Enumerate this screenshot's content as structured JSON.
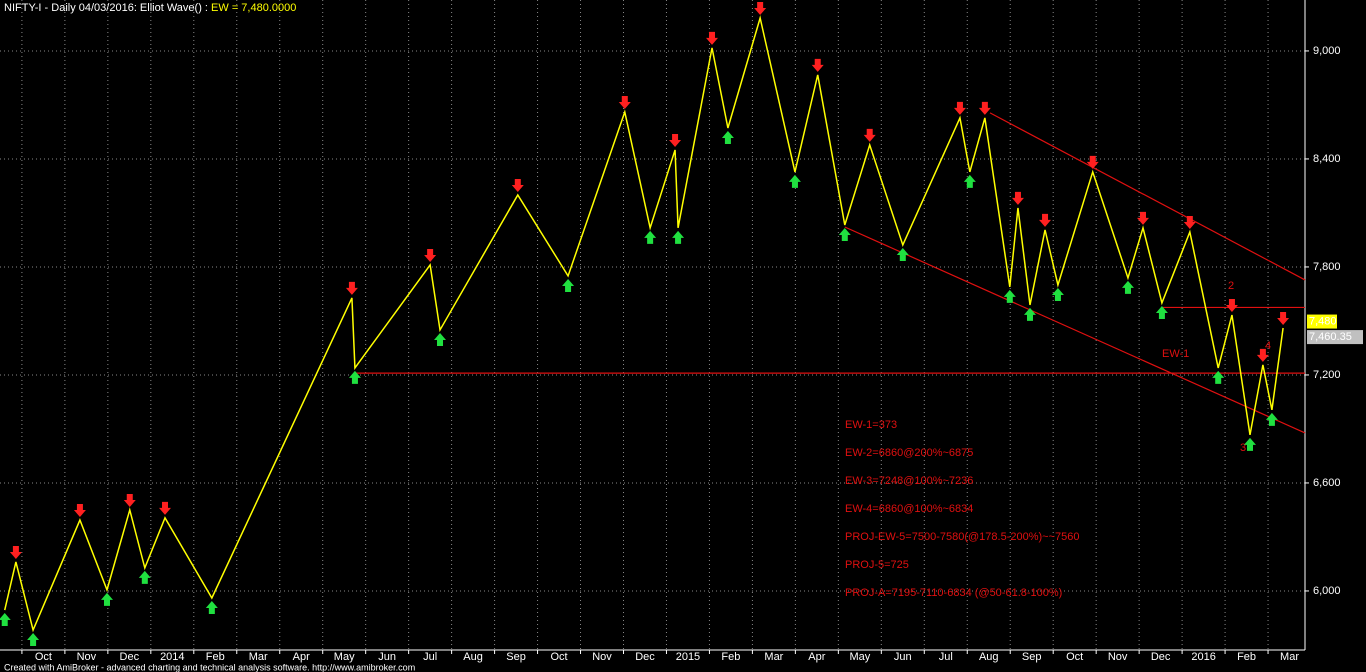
{
  "chart_data": {
    "type": "line",
    "title": "NIFTY-I - Daily 04/03/2016: Elliot Wave() : ",
    "title_value": "EW = 7,480.0000",
    "footer": "Created with AmiBroker - advanced charting and technical analysis software. http://www.amibroker.com",
    "xlim": [
      0.49,
      30.86
    ],
    "ylim": [
      5672,
      9283
    ],
    "yticks": [
      {
        "value": 6000,
        "label": "6,000"
      },
      {
        "value": 6600,
        "label": "6,600"
      },
      {
        "value": 7200,
        "label": "7,200"
      },
      {
        "value": 7800,
        "label": "7,800"
      },
      {
        "value": 8400,
        "label": "8,400"
      },
      {
        "value": 9000,
        "label": "9,000"
      }
    ],
    "xticks": [
      {
        "value": 1,
        "label": "Oct"
      },
      {
        "value": 2,
        "label": "Nov"
      },
      {
        "value": 3,
        "label": "Dec"
      },
      {
        "value": 4,
        "label": "2014"
      },
      {
        "value": 5,
        "label": "Feb"
      },
      {
        "value": 6,
        "label": "Mar"
      },
      {
        "value": 7,
        "label": "Apr"
      },
      {
        "value": 8,
        "label": "May"
      },
      {
        "value": 9,
        "label": "Jun"
      },
      {
        "value": 10,
        "label": "Jul"
      },
      {
        "value": 11,
        "label": "Aug"
      },
      {
        "value": 12,
        "label": "Sep"
      },
      {
        "value": 13,
        "label": "Oct"
      },
      {
        "value": 14,
        "label": "Nov"
      },
      {
        "value": 15,
        "label": "Dec"
      },
      {
        "value": 16,
        "label": "2015"
      },
      {
        "value": 17,
        "label": "Feb"
      },
      {
        "value": 18,
        "label": "Mar"
      },
      {
        "value": 19,
        "label": "Apr"
      },
      {
        "value": 20,
        "label": "May"
      },
      {
        "value": 21,
        "label": "Jun"
      },
      {
        "value": 22,
        "label": "Jul"
      },
      {
        "value": 23,
        "label": "Aug"
      },
      {
        "value": 24,
        "label": "Sep"
      },
      {
        "value": 25,
        "label": "Oct"
      },
      {
        "value": 26,
        "label": "Nov"
      },
      {
        "value": 27,
        "label": "Dec"
      },
      {
        "value": 28,
        "label": "2016"
      },
      {
        "value": 29,
        "label": "Feb"
      },
      {
        "value": 30,
        "label": "Mar"
      }
    ],
    "grid": true,
    "series": [
      {
        "name": "EW",
        "color": "#ffff00",
        "x": [
          0.6,
          0.86,
          1.26,
          2.35,
          2.98,
          3.51,
          3.86,
          4.33,
          5.42,
          8.68,
          8.75,
          10.5,
          10.73,
          12.54,
          13.71,
          15.03,
          15.62,
          16.2,
          16.27,
          17.06,
          17.43,
          18.18,
          18.99,
          19.52,
          20.15,
          20.73,
          21.5,
          22.83,
          23.06,
          23.41,
          23.99,
          24.18,
          24.46,
          24.81,
          25.11,
          25.92,
          26.74,
          27.09,
          27.53,
          28.18,
          28.84,
          29.16,
          29.58,
          29.88,
          30.09,
          30.35
        ],
        "values": [
          5894,
          6161,
          5783,
          6394,
          6006,
          6450,
          6128,
          6406,
          5961,
          7628,
          7239,
          7811,
          7450,
          8200,
          7750,
          8661,
          8017,
          8450,
          8017,
          9017,
          8572,
          9183,
          8328,
          8867,
          8033,
          8478,
          7922,
          8628,
          8328,
          8628,
          7689,
          8128,
          7589,
          8006,
          7700,
          8328,
          7739,
          8017,
          7600,
          7994,
          7239,
          7533,
          6867,
          7256,
          7006,
          7461
        ]
      }
    ],
    "trendlines": [
      {
        "color": "#e01010",
        "x": [
          23.53,
          30.86
        ],
        "y": [
          8656,
          7728
        ]
      },
      {
        "color": "#e01010",
        "x": [
          20.15,
          30.86
        ],
        "y": [
          8022,
          6878
        ]
      },
      {
        "color": "#e01010",
        "x": [
          8.75,
          30.86
        ],
        "y": [
          7210,
          7210
        ]
      },
      {
        "color": "#e01010",
        "x": [
          27.53,
          30.86
        ],
        "y": [
          7575,
          7575
        ]
      }
    ],
    "price_labels": [
      {
        "value": 7480,
        "label": "7,480",
        "color": "#ffff00"
      },
      {
        "value": 7460.35,
        "label": "7,460.35",
        "color": "#c0c0c0"
      }
    ],
    "wave_labels": [
      "EW-1",
      "2",
      "3",
      "4"
    ],
    "annotations": [
      "EW-1=373",
      "EW-2=6860@200%~6875",
      "EW-3=7248@100%~7236",
      "EW-4=6860@100%~6834",
      "PROJ-EW-5=7500-7580(@178.5-200%)~~7560",
      "PROJ-5=725",
      "PROJ-A=7195-7110-6834 (@50-61.8-100%)"
    ]
  }
}
